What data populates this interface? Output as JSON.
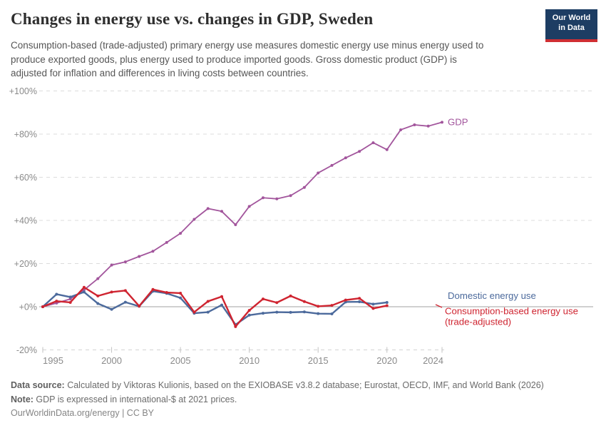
{
  "header": {
    "title": "Changes in energy use vs. changes in GDP, Sweden",
    "subtitle_lines": [
      "Consumption-based (trade-adjusted) primary energy use measures domestic energy use minus energy used to",
      "produce exported goods, plus energy used to produce imported goods. Gross domestic product (GDP) is",
      "adjusted for inflation and differences in living costs between countries."
    ],
    "logo": {
      "line1": "Our World",
      "line2": "in Data",
      "bg_color": "#1d3d63",
      "stripe_color": "#cf2f33"
    }
  },
  "chart_data": {
    "type": "line",
    "title": "Changes in energy use vs. changes in GDP, Sweden",
    "xlabel": "",
    "ylabel": "",
    "xlim": [
      1995,
      2024
    ],
    "ylim": [
      -20,
      100
    ],
    "grid": true,
    "legend_position": "end-of-line-labels",
    "xticks": [
      1995,
      2000,
      2005,
      2010,
      2015,
      2020,
      2024
    ],
    "yticks": [
      {
        "label": "+100%",
        "value": 100
      },
      {
        "label": "+80%",
        "value": 80
      },
      {
        "label": "+60%",
        "value": 60
      },
      {
        "label": "+40%",
        "value": 40
      },
      {
        "label": "+20%",
        "value": 20
      },
      {
        "label": "+0%",
        "value": 0
      },
      {
        "label": "-20%",
        "value": -20
      }
    ],
    "series": [
      {
        "name": "GDP",
        "color": "#a2559c",
        "stroke_width": 1.8,
        "start_year": 1995,
        "label_lines": [
          "GDP"
        ],
        "label_dy": 4,
        "values": [
          0,
          1.7,
          3.6,
          7.8,
          13,
          19.3,
          20.8,
          23.3,
          25.7,
          29.8,
          34,
          40.5,
          45.5,
          44.2,
          38,
          46.5,
          50.5,
          50,
          51.5,
          55.3,
          62,
          65.5,
          69,
          72,
          76,
          72.8,
          82,
          84.3,
          83.7,
          85.5
        ]
      },
      {
        "name": "Domestic energy use",
        "color": "#4c6a9c",
        "stroke_width": 2.4,
        "start_year": 1995,
        "label_lines": [
          "Domestic energy use"
        ],
        "label_dy": -5,
        "values": [
          0,
          5.8,
          4.5,
          6.8,
          1.5,
          -1.2,
          2.1,
          0.2,
          7.2,
          6.2,
          4.1,
          -3.0,
          -2.5,
          0.8,
          -8.3,
          -3.9,
          -3.0,
          -2.5,
          -2.6,
          -2.4,
          -3.2,
          -3.3,
          2.2,
          2.3,
          1.2,
          2.0
        ]
      },
      {
        "name": "Consumption-based energy use (trade-adjusted)",
        "color": "#cf2430",
        "stroke_width": 2.4,
        "start_year": 1995,
        "label_lines": [
          "Consumption-based energy use",
          "(trade-adjusted)"
        ],
        "label_dy": 12,
        "has_leader_tick": true,
        "values": [
          0,
          2.6,
          2.0,
          9.0,
          5.0,
          6.8,
          7.5,
          0.3,
          8.0,
          6.6,
          6.3,
          -2.5,
          2.5,
          4.7,
          -9.2,
          -1.7,
          3.6,
          1.9,
          5.0,
          2.4,
          0.2,
          0.6,
          3.1,
          3.9,
          -0.8,
          0.5
        ]
      }
    ],
    "style": {
      "grid_color": "#dcdcdc",
      "zero_line_color": "#a1a1a1",
      "axis_line_color": "#d4d4d4",
      "tick_color": "#c2c2c2",
      "ytick_label_color": "#8a8a8a",
      "xtick_label_color": "#8a8a8a"
    }
  },
  "footer": {
    "data_source_label": "Data source:",
    "data_source_text": " Calculated by Viktoras Kulionis, based on the EXIOBASE v3.8.2 database; Eurostat, OECD, IMF, and World Bank (2026)",
    "note_label": "Note:",
    "note_text": " GDP is expressed in international-$ at 2021 prices.",
    "link_line": "OurWorldinData.org/energy | CC BY"
  }
}
